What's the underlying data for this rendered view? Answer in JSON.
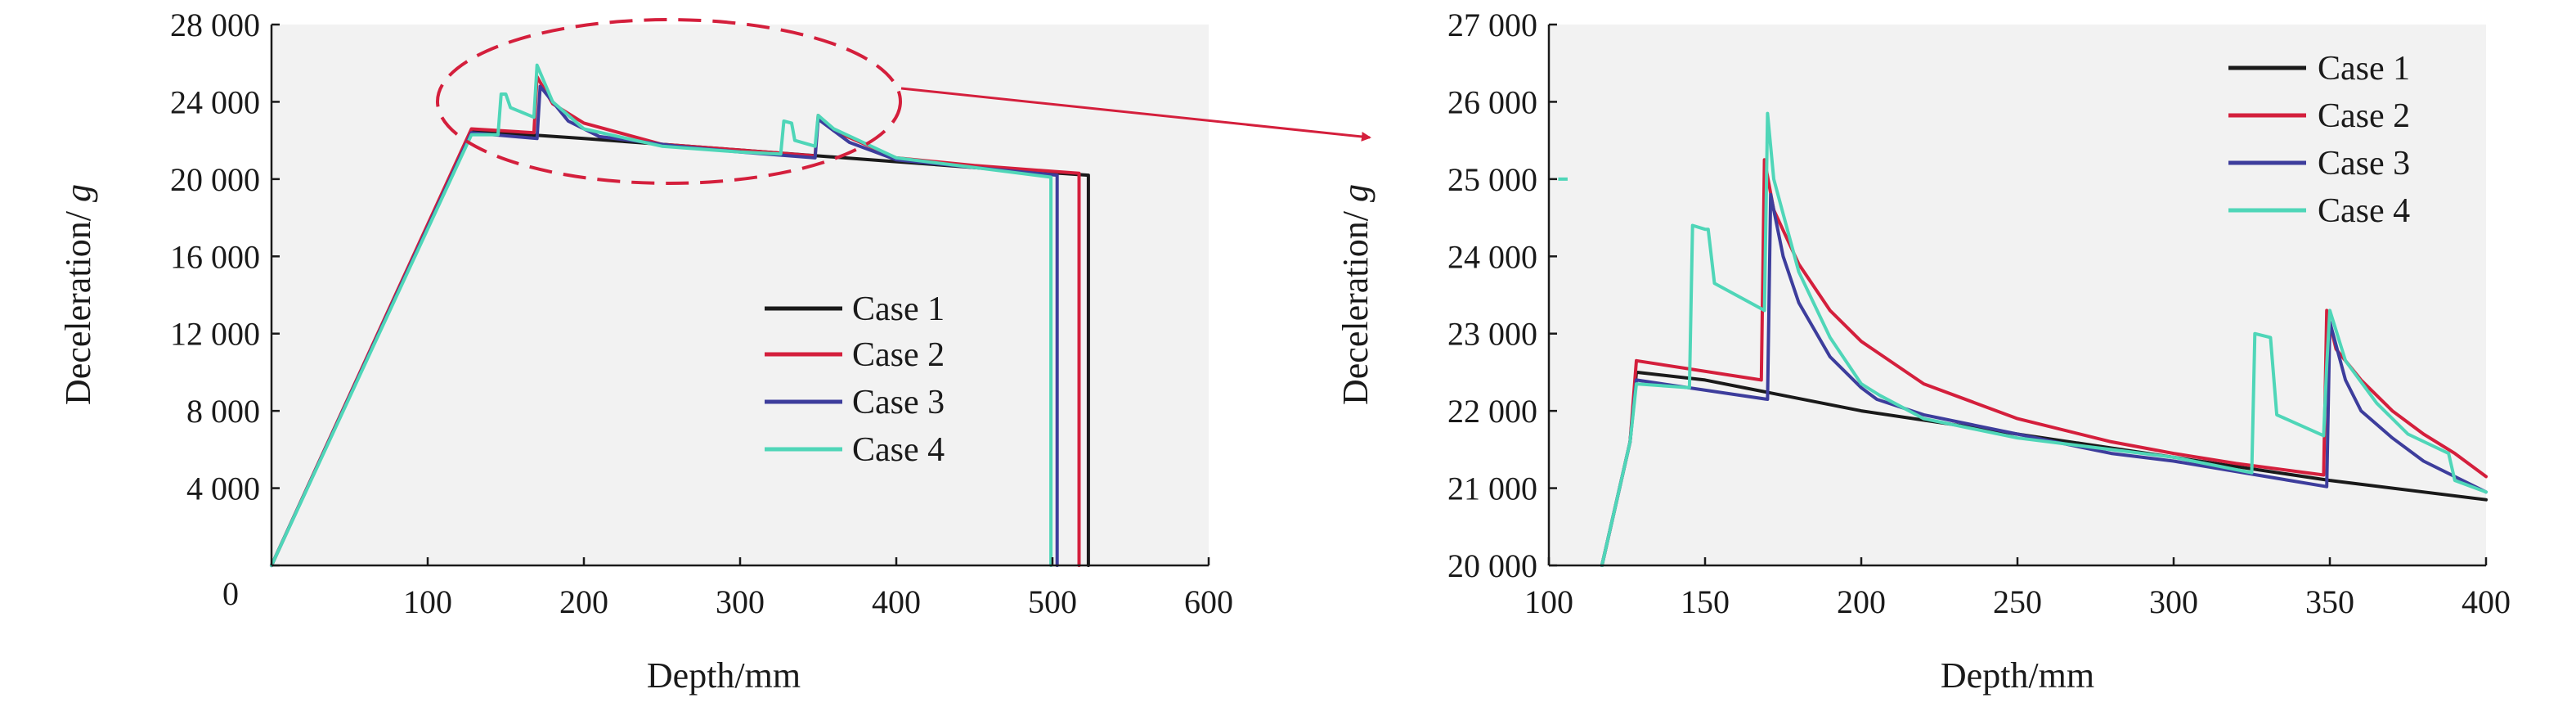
{
  "colors": {
    "case1": "#1a1a1a",
    "case2": "#d41f3c",
    "case3": "#3d3d9c",
    "case4": "#4fd6b8",
    "zoom_marker": "#d41f3c",
    "plot_background": "#f2f2f2"
  },
  "chart_data": [
    {
      "type": "line",
      "xlabel": "Depth/mm",
      "ylabel": "Deceleration/g",
      "xlim": [
        0,
        600
      ],
      "ylim": [
        0,
        28000
      ],
      "xticks": [
        100,
        200,
        300,
        400,
        500,
        600
      ],
      "xtick_labels": [
        "100",
        "200",
        "300",
        "400",
        "500",
        "600"
      ],
      "yticks": [
        0,
        4000,
        8000,
        12000,
        16000,
        20000,
        24000,
        28000
      ],
      "ytick_labels": [
        "0",
        "4 000",
        "8 000",
        "12 000",
        "16 000",
        "20 000",
        "24 000",
        "28 000"
      ],
      "grid": false,
      "legend_position": "center-right",
      "zoom_region": {
        "x": [
          100,
          400
        ],
        "y": [
          20000,
          27000
        ]
      },
      "series": [
        {
          "name": "Case 1",
          "color": "#1a1a1a",
          "x": [
            0,
            128,
            200,
            300,
            400,
            450,
            523,
            523
          ],
          "y": [
            0,
            22500,
            22100,
            21500,
            20900,
            20600,
            20200,
            0
          ]
        },
        {
          "name": "Case 2",
          "color": "#d41f3c",
          "x": [
            0,
            128,
            168,
            170,
            180,
            200,
            250,
            300,
            348,
            350,
            360,
            400,
            450,
            517,
            517
          ],
          "y": [
            0,
            22600,
            22400,
            25300,
            23900,
            22900,
            21800,
            21500,
            21200,
            23300,
            22500,
            21100,
            20700,
            20300,
            0
          ]
        },
        {
          "name": "Case 3",
          "color": "#3d3d9c",
          "x": [
            0,
            128,
            170,
            172,
            190,
            210,
            260,
            300,
            348,
            350,
            370,
            400,
            450,
            503,
            503
          ],
          "y": [
            0,
            22400,
            22100,
            24800,
            23000,
            22200,
            21700,
            21400,
            21100,
            23100,
            21900,
            21000,
            20600,
            20200,
            0
          ]
        },
        {
          "name": "Case 4",
          "color": "#4fd6b8",
          "x": [
            0,
            128,
            145,
            147,
            150,
            153,
            168,
            170,
            180,
            200,
            250,
            300,
            326,
            328,
            333,
            335,
            348,
            350,
            360,
            400,
            450,
            499,
            499
          ],
          "y": [
            0,
            22300,
            22300,
            24400,
            24400,
            23700,
            23200,
            25900,
            24000,
            22600,
            21700,
            21400,
            21300,
            23000,
            22900,
            22000,
            21700,
            23300,
            22600,
            21100,
            20600,
            20100,
            0
          ]
        }
      ]
    },
    {
      "type": "line",
      "xlabel": "Depth/mm",
      "ylabel": "Deceleration/g",
      "xlim": [
        100,
        400
      ],
      "ylim": [
        20000,
        27000
      ],
      "xticks": [
        100,
        150,
        200,
        250,
        300,
        350,
        400
      ],
      "xtick_labels": [
        "100",
        "150",
        "200",
        "250",
        "300",
        "350",
        "400"
      ],
      "yticks": [
        20000,
        21000,
        22000,
        23000,
        24000,
        25000,
        26000,
        27000
      ],
      "ytick_labels": [
        "20 000",
        "21 000",
        "22 000",
        "23 000",
        "24 000",
        "25 000",
        "26 000",
        "27 000"
      ],
      "grid": false,
      "legend_position": "top-right",
      "stray_mark": {
        "color": "#4fd6b8",
        "x": [
          103,
          106
        ],
        "y": [
          25000,
          25000
        ]
      },
      "series": [
        {
          "name": "Case 1",
          "color": "#1a1a1a",
          "x": [
            117,
            126,
            128,
            150,
            200,
            250,
            300,
            350,
            400
          ],
          "y": [
            20000,
            21600,
            22500,
            22400,
            22000,
            21700,
            21400,
            21100,
            20850
          ]
        },
        {
          "name": "Case 2",
          "color": "#d41f3c",
          "x": [
            117,
            126,
            128,
            168,
            169,
            172,
            180,
            190,
            200,
            220,
            250,
            280,
            300,
            320,
            348,
            349,
            352,
            360,
            370,
            380,
            390,
            400
          ],
          "y": [
            20000,
            21600,
            22650,
            22400,
            25250,
            24600,
            23900,
            23300,
            22900,
            22350,
            21900,
            21600,
            21450,
            21320,
            21170,
            23300,
            22800,
            22400,
            22000,
            21700,
            21450,
            21150
          ]
        },
        {
          "name": "Case 3",
          "color": "#3d3d9c",
          "x": [
            117,
            126,
            128,
            170,
            171,
            175,
            180,
            190,
            200,
            205,
            220,
            250,
            280,
            300,
            349,
            350,
            355,
            360,
            370,
            380,
            400
          ],
          "y": [
            20000,
            21600,
            22400,
            22150,
            24800,
            24000,
            23400,
            22700,
            22300,
            22150,
            21950,
            21700,
            21450,
            21350,
            21020,
            23150,
            22400,
            22000,
            21650,
            21350,
            20950
          ]
        },
        {
          "name": "Case 4",
          "color": "#4fd6b8",
          "x": [
            117,
            126,
            128,
            145,
            146,
            150,
            151,
            153,
            169,
            170,
            172,
            176,
            180,
            190,
            200,
            206,
            220,
            250,
            280,
            300,
            325,
            326,
            331,
            333,
            348,
            349,
            350,
            355,
            365,
            375,
            388,
            390,
            400
          ],
          "y": [
            20000,
            21600,
            22350,
            22300,
            24400,
            24350,
            24350,
            23650,
            23300,
            25850,
            25000,
            24400,
            23800,
            22950,
            22350,
            22200,
            21900,
            21650,
            21500,
            21400,
            21200,
            23000,
            22950,
            21950,
            21680,
            22600,
            23300,
            22650,
            22100,
            21700,
            21450,
            21100,
            20950
          ]
        }
      ]
    }
  ]
}
